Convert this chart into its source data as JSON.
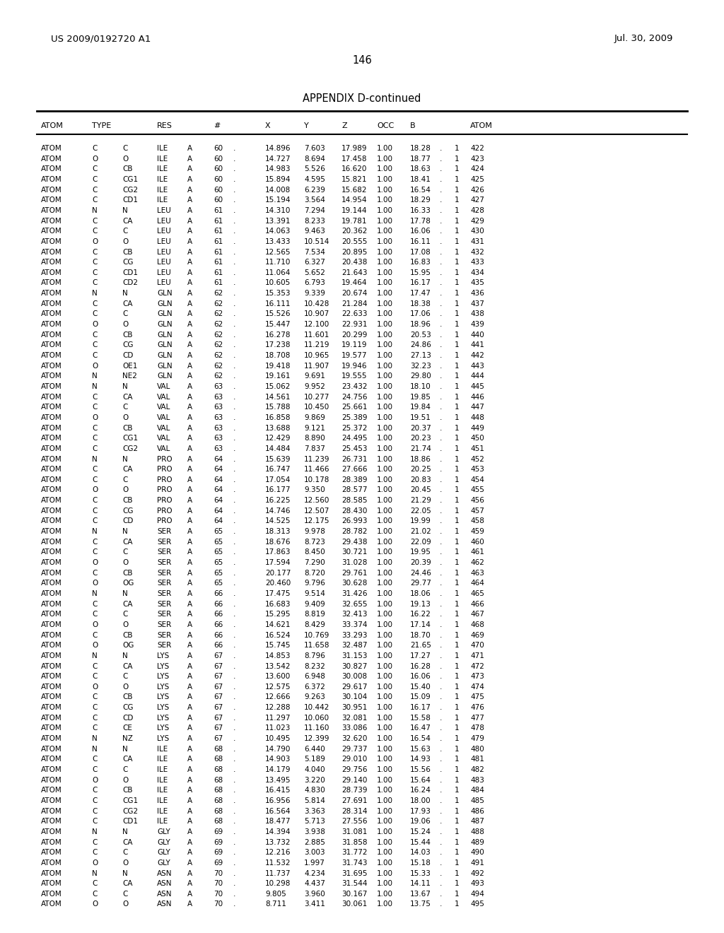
{
  "header_left": "US 2009/0192720 A1",
  "header_right": "Jul. 30, 2009",
  "page_number": "146",
  "table_title": "APPENDIX D-continued",
  "col_headers": [
    "ATOM",
    "TYPE",
    "RES",
    "#",
    "X",
    "Y",
    "Z",
    "OCC",
    "B",
    "ATOM"
  ],
  "rows": [
    [
      "ATOM",
      "C",
      "C",
      "ILE",
      "A",
      "60",
      ".",
      "14.896",
      "7.603",
      "17.989",
      "1.00",
      "18.28",
      ".",
      "1",
      "422"
    ],
    [
      "ATOM",
      "O",
      "O",
      "ILE",
      "A",
      "60",
      ".",
      "14.727",
      "8.694",
      "17.458",
      "1.00",
      "18.77",
      ".",
      "1",
      "423"
    ],
    [
      "ATOM",
      "C",
      "CB",
      "ILE",
      "A",
      "60",
      ".",
      "14.983",
      "5.526",
      "16.620",
      "1.00",
      "18.63",
      ".",
      "1",
      "424"
    ],
    [
      "ATOM",
      "C",
      "CG1",
      "ILE",
      "A",
      "60",
      ".",
      "15.894",
      "4.595",
      "15.821",
      "1.00",
      "18.41",
      ".",
      "1",
      "425"
    ],
    [
      "ATOM",
      "C",
      "CG2",
      "ILE",
      "A",
      "60",
      ".",
      "14.008",
      "6.239",
      "15.682",
      "1.00",
      "16.54",
      ".",
      "1",
      "426"
    ],
    [
      "ATOM",
      "C",
      "CD1",
      "ILE",
      "A",
      "60",
      ".",
      "15.194",
      "3.564",
      "14.954",
      "1.00",
      "18.29",
      ".",
      "1",
      "427"
    ],
    [
      "ATOM",
      "N",
      "N",
      "LEU",
      "A",
      "61",
      ".",
      "14.310",
      "7.294",
      "19.144",
      "1.00",
      "16.33",
      ".",
      "1",
      "428"
    ],
    [
      "ATOM",
      "C",
      "CA",
      "LEU",
      "A",
      "61",
      ".",
      "13.391",
      "8.233",
      "19.781",
      "1.00",
      "17.78",
      ".",
      "1",
      "429"
    ],
    [
      "ATOM",
      "C",
      "C",
      "LEU",
      "A",
      "61",
      ".",
      "14.063",
      "9.463",
      "20.362",
      "1.00",
      "16.06",
      ".",
      "1",
      "430"
    ],
    [
      "ATOM",
      "O",
      "O",
      "LEU",
      "A",
      "61",
      ".",
      "13.433",
      "10.514",
      "20.555",
      "1.00",
      "16.11",
      ".",
      "1",
      "431"
    ],
    [
      "ATOM",
      "C",
      "CB",
      "LEU",
      "A",
      "61",
      ".",
      "12.565",
      "7.534",
      "20.895",
      "1.00",
      "17.08",
      ".",
      "1",
      "432"
    ],
    [
      "ATOM",
      "C",
      "CG",
      "LEU",
      "A",
      "61",
      ".",
      "11.710",
      "6.327",
      "20.438",
      "1.00",
      "16.83",
      ".",
      "1",
      "433"
    ],
    [
      "ATOM",
      "C",
      "CD1",
      "LEU",
      "A",
      "61",
      ".",
      "11.064",
      "5.652",
      "21.643",
      "1.00",
      "15.95",
      ".",
      "1",
      "434"
    ],
    [
      "ATOM",
      "C",
      "CD2",
      "LEU",
      "A",
      "61",
      ".",
      "10.605",
      "6.793",
      "19.464",
      "1.00",
      "16.17",
      ".",
      "1",
      "435"
    ],
    [
      "ATOM",
      "N",
      "N",
      "GLN",
      "A",
      "62",
      ".",
      "15.353",
      "9.339",
      "20.674",
      "1.00",
      "17.47",
      ".",
      "1",
      "436"
    ],
    [
      "ATOM",
      "C",
      "CA",
      "GLN",
      "A",
      "62",
      ".",
      "16.111",
      "10.428",
      "21.284",
      "1.00",
      "18.38",
      ".",
      "1",
      "437"
    ],
    [
      "ATOM",
      "C",
      "C",
      "GLN",
      "A",
      "62",
      ".",
      "15.526",
      "10.907",
      "22.633",
      "1.00",
      "17.06",
      ".",
      "1",
      "438"
    ],
    [
      "ATOM",
      "O",
      "O",
      "GLN",
      "A",
      "62",
      ".",
      "15.447",
      "12.100",
      "22.931",
      "1.00",
      "18.96",
      ".",
      "1",
      "439"
    ],
    [
      "ATOM",
      "C",
      "CB",
      "GLN",
      "A",
      "62",
      ".",
      "16.278",
      "11.601",
      "20.299",
      "1.00",
      "20.53",
      ".",
      "1",
      "440"
    ],
    [
      "ATOM",
      "C",
      "CG",
      "GLN",
      "A",
      "62",
      ".",
      "17.238",
      "11.219",
      "19.119",
      "1.00",
      "24.86",
      ".",
      "1",
      "441"
    ],
    [
      "ATOM",
      "C",
      "CD",
      "GLN",
      "A",
      "62",
      ".",
      "18.708",
      "10.965",
      "19.577",
      "1.00",
      "27.13",
      ".",
      "1",
      "442"
    ],
    [
      "ATOM",
      "O",
      "OE1",
      "GLN",
      "A",
      "62",
      ".",
      "19.418",
      "11.907",
      "19.946",
      "1.00",
      "32.23",
      ".",
      "1",
      "443"
    ],
    [
      "ATOM",
      "N",
      "NE2",
      "GLN",
      "A",
      "62",
      ".",
      "19.161",
      "9.691",
      "19.555",
      "1.00",
      "29.80",
      ".",
      "1",
      "444"
    ],
    [
      "ATOM",
      "N",
      "N",
      "VAL",
      "A",
      "63",
      ".",
      "15.062",
      "9.952",
      "23.432",
      "1.00",
      "18.10",
      ".",
      "1",
      "445"
    ],
    [
      "ATOM",
      "C",
      "CA",
      "VAL",
      "A",
      "63",
      ".",
      "14.561",
      "10.277",
      "24.756",
      "1.00",
      "19.85",
      ".",
      "1",
      "446"
    ],
    [
      "ATOM",
      "C",
      "C",
      "VAL",
      "A",
      "63",
      ".",
      "15.788",
      "10.450",
      "25.661",
      "1.00",
      "19.84",
      ".",
      "1",
      "447"
    ],
    [
      "ATOM",
      "O",
      "O",
      "VAL",
      "A",
      "63",
      ".",
      "16.858",
      "9.869",
      "25.389",
      "1.00",
      "19.51",
      ".",
      "1",
      "448"
    ],
    [
      "ATOM",
      "C",
      "CB",
      "VAL",
      "A",
      "63",
      ".",
      "13.688",
      "9.121",
      "25.372",
      "1.00",
      "20.37",
      ".",
      "1",
      "449"
    ],
    [
      "ATOM",
      "C",
      "CG1",
      "VAL",
      "A",
      "63",
      ".",
      "12.429",
      "8.890",
      "24.495",
      "1.00",
      "20.23",
      ".",
      "1",
      "450"
    ],
    [
      "ATOM",
      "C",
      "CG2",
      "VAL",
      "A",
      "63",
      ".",
      "14.484",
      "7.837",
      "25.453",
      "1.00",
      "21.74",
      ".",
      "1",
      "451"
    ],
    [
      "ATOM",
      "N",
      "N",
      "PRO",
      "A",
      "64",
      ".",
      "15.639",
      "11.239",
      "26.731",
      "1.00",
      "18.86",
      ".",
      "1",
      "452"
    ],
    [
      "ATOM",
      "C",
      "CA",
      "PRO",
      "A",
      "64",
      ".",
      "16.747",
      "11.466",
      "27.666",
      "1.00",
      "20.25",
      ".",
      "1",
      "453"
    ],
    [
      "ATOM",
      "C",
      "C",
      "PRO",
      "A",
      "64",
      ".",
      "17.054",
      "10.178",
      "28.389",
      "1.00",
      "20.83",
      ".",
      "1",
      "454"
    ],
    [
      "ATOM",
      "O",
      "O",
      "PRO",
      "A",
      "64",
      ".",
      "16.177",
      "9.350",
      "28.577",
      "1.00",
      "20.45",
      ".",
      "1",
      "455"
    ],
    [
      "ATOM",
      "C",
      "CB",
      "PRO",
      "A",
      "64",
      ".",
      "16.225",
      "12.560",
      "28.585",
      "1.00",
      "21.29",
      ".",
      "1",
      "456"
    ],
    [
      "ATOM",
      "C",
      "CG",
      "PRO",
      "A",
      "64",
      ".",
      "14.746",
      "12.507",
      "28.430",
      "1.00",
      "22.05",
      ".",
      "1",
      "457"
    ],
    [
      "ATOM",
      "C",
      "CD",
      "PRO",
      "A",
      "64",
      ".",
      "14.525",
      "12.175",
      "26.993",
      "1.00",
      "19.99",
      ".",
      "1",
      "458"
    ],
    [
      "ATOM",
      "N",
      "N",
      "SER",
      "A",
      "65",
      ".",
      "18.313",
      "9.978",
      "28.782",
      "1.00",
      "21.02",
      ".",
      "1",
      "459"
    ],
    [
      "ATOM",
      "C",
      "CA",
      "SER",
      "A",
      "65",
      ".",
      "18.676",
      "8.723",
      "29.438",
      "1.00",
      "22.09",
      ".",
      "1",
      "460"
    ],
    [
      "ATOM",
      "C",
      "C",
      "SER",
      "A",
      "65",
      ".",
      "17.863",
      "8.450",
      "30.721",
      "1.00",
      "19.95",
      ".",
      "1",
      "461"
    ],
    [
      "ATOM",
      "O",
      "O",
      "SER",
      "A",
      "65",
      ".",
      "17.594",
      "7.290",
      "31.028",
      "1.00",
      "20.39",
      ".",
      "1",
      "462"
    ],
    [
      "ATOM",
      "C",
      "CB",
      "SER",
      "A",
      "65",
      ".",
      "20.177",
      "8.720",
      "29.761",
      "1.00",
      "24.46",
      ".",
      "1",
      "463"
    ],
    [
      "ATOM",
      "O",
      "OG",
      "SER",
      "A",
      "65",
      ".",
      "20.460",
      "9.796",
      "30.628",
      "1.00",
      "29.77",
      ".",
      "1",
      "464"
    ],
    [
      "ATOM",
      "N",
      "N",
      "SER",
      "A",
      "66",
      ".",
      "17.475",
      "9.514",
      "31.426",
      "1.00",
      "18.06",
      ".",
      "1",
      "465"
    ],
    [
      "ATOM",
      "C",
      "CA",
      "SER",
      "A",
      "66",
      ".",
      "16.683",
      "9.409",
      "32.655",
      "1.00",
      "19.13",
      ".",
      "1",
      "466"
    ],
    [
      "ATOM",
      "C",
      "C",
      "SER",
      "A",
      "66",
      ".",
      "15.295",
      "8.819",
      "32.413",
      "1.00",
      "16.22",
      ".",
      "1",
      "467"
    ],
    [
      "ATOM",
      "O",
      "O",
      "SER",
      "A",
      "66",
      ".",
      "14.621",
      "8.429",
      "33.374",
      "1.00",
      "17.14",
      ".",
      "1",
      "468"
    ],
    [
      "ATOM",
      "C",
      "CB",
      "SER",
      "A",
      "66",
      ".",
      "16.524",
      "10.769",
      "33.293",
      "1.00",
      "18.70",
      ".",
      "1",
      "469"
    ],
    [
      "ATOM",
      "O",
      "OG",
      "SER",
      "A",
      "66",
      ".",
      "15.745",
      "11.658",
      "32.487",
      "1.00",
      "21.65",
      ".",
      "1",
      "470"
    ],
    [
      "ATOM",
      "N",
      "N",
      "LYS",
      "A",
      "67",
      ".",
      "14.853",
      "8.796",
      "31.153",
      "1.00",
      "17.27",
      ".",
      "1",
      "471"
    ],
    [
      "ATOM",
      "C",
      "CA",
      "LYS",
      "A",
      "67",
      ".",
      "13.542",
      "8.232",
      "30.827",
      "1.00",
      "16.28",
      ".",
      "1",
      "472"
    ],
    [
      "ATOM",
      "C",
      "C",
      "LYS",
      "A",
      "67",
      ".",
      "13.600",
      "6.948",
      "30.008",
      "1.00",
      "16.06",
      ".",
      "1",
      "473"
    ],
    [
      "ATOM",
      "O",
      "O",
      "LYS",
      "A",
      "67",
      ".",
      "12.575",
      "6.372",
      "29.617",
      "1.00",
      "15.40",
      ".",
      "1",
      "474"
    ],
    [
      "ATOM",
      "C",
      "CB",
      "LYS",
      "A",
      "67",
      ".",
      "12.666",
      "9.263",
      "30.104",
      "1.00",
      "15.09",
      ".",
      "1",
      "475"
    ],
    [
      "ATOM",
      "C",
      "CG",
      "LYS",
      "A",
      "67",
      ".",
      "12.288",
      "10.442",
      "30.951",
      "1.00",
      "16.17",
      ".",
      "1",
      "476"
    ],
    [
      "ATOM",
      "C",
      "CD",
      "LYS",
      "A",
      "67",
      ".",
      "11.297",
      "10.060",
      "32.081",
      "1.00",
      "15.58",
      ".",
      "1",
      "477"
    ],
    [
      "ATOM",
      "C",
      "CE",
      "LYS",
      "A",
      "67",
      ".",
      "11.023",
      "11.160",
      "33.086",
      "1.00",
      "16.47",
      ".",
      "1",
      "478"
    ],
    [
      "ATOM",
      "N",
      "NZ",
      "LYS",
      "A",
      "67",
      ".",
      "10.495",
      "12.399",
      "32.620",
      "1.00",
      "16.54",
      ".",
      "1",
      "479"
    ],
    [
      "ATOM",
      "N",
      "N",
      "ILE",
      "A",
      "68",
      ".",
      "14.790",
      "6.440",
      "29.737",
      "1.00",
      "15.63",
      ".",
      "1",
      "480"
    ],
    [
      "ATOM",
      "C",
      "CA",
      "ILE",
      "A",
      "68",
      ".",
      "14.903",
      "5.189",
      "29.010",
      "1.00",
      "14.93",
      ".",
      "1",
      "481"
    ],
    [
      "ATOM",
      "C",
      "C",
      "ILE",
      "A",
      "68",
      ".",
      "14.179",
      "4.040",
      "29.756",
      "1.00",
      "15.56",
      ".",
      "1",
      "482"
    ],
    [
      "ATOM",
      "O",
      "O",
      "ILE",
      "A",
      "68",
      ".",
      "13.495",
      "3.220",
      "29.140",
      "1.00",
      "15.64",
      ".",
      "1",
      "483"
    ],
    [
      "ATOM",
      "C",
      "CB",
      "ILE",
      "A",
      "68",
      ".",
      "16.415",
      "4.830",
      "28.739",
      "1.00",
      "16.24",
      ".",
      "1",
      "484"
    ],
    [
      "ATOM",
      "C",
      "CG1",
      "ILE",
      "A",
      "68",
      ".",
      "16.956",
      "5.814",
      "27.691",
      "1.00",
      "18.00",
      ".",
      "1",
      "485"
    ],
    [
      "ATOM",
      "C",
      "CG2",
      "ILE",
      "A",
      "68",
      ".",
      "16.564",
      "3.363",
      "28.314",
      "1.00",
      "17.93",
      ".",
      "1",
      "486"
    ],
    [
      "ATOM",
      "C",
      "CD1",
      "ILE",
      "A",
      "68",
      ".",
      "18.477",
      "5.713",
      "27.556",
      "1.00",
      "19.06",
      ".",
      "1",
      "487"
    ],
    [
      "ATOM",
      "N",
      "N",
      "GLY",
      "A",
      "69",
      ".",
      "14.394",
      "3.938",
      "31.081",
      "1.00",
      "15.24",
      ".",
      "1",
      "488"
    ],
    [
      "ATOM",
      "C",
      "CA",
      "GLY",
      "A",
      "69",
      ".",
      "13.732",
      "2.885",
      "31.858",
      "1.00",
      "15.44",
      ".",
      "1",
      "489"
    ],
    [
      "ATOM",
      "C",
      "C",
      "GLY",
      "A",
      "69",
      ".",
      "12.216",
      "3.003",
      "31.772",
      "1.00",
      "14.03",
      ".",
      "1",
      "490"
    ],
    [
      "ATOM",
      "O",
      "O",
      "GLY",
      "A",
      "69",
      ".",
      "11.532",
      "1.997",
      "31.743",
      "1.00",
      "15.18",
      ".",
      "1",
      "491"
    ],
    [
      "ATOM",
      "N",
      "N",
      "ASN",
      "A",
      "70",
      ".",
      "11.737",
      "4.234",
      "31.695",
      "1.00",
      "15.33",
      ".",
      "1",
      "492"
    ],
    [
      "ATOM",
      "C",
      "CA",
      "ASN",
      "A",
      "70",
      ".",
      "10.298",
      "4.437",
      "31.544",
      "1.00",
      "14.11",
      ".",
      "1",
      "493"
    ],
    [
      "ATOM",
      "C",
      "C",
      "ASN",
      "A",
      "70",
      ".",
      "9.805",
      "3.960",
      "30.167",
      "1.00",
      "13.67",
      ".",
      "1",
      "494"
    ],
    [
      "ATOM",
      "O",
      "O",
      "ASN",
      "A",
      "70",
      ".",
      "8.711",
      "3.411",
      "30.061",
      "1.00",
      "13.75",
      ".",
      "1",
      "495"
    ]
  ],
  "bg_color": "#ffffff",
  "text_color": "#000000",
  "font_size": 7.5,
  "header_font_size": 9.5,
  "title_font_size": 10.5
}
